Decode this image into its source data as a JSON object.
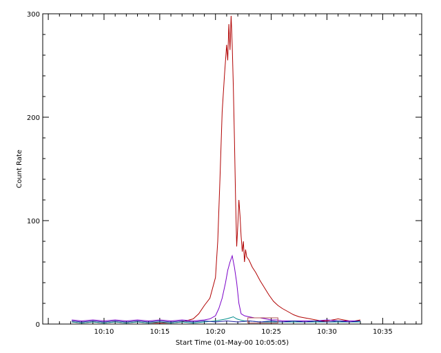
{
  "chart_data": {
    "type": "line",
    "xlabel": "Start Time (01-May-00 10:05:05)",
    "ylabel": "Count Rate",
    "xlim_min": [
      4.5,
      38.5
    ],
    "ylim": [
      0,
      300
    ],
    "x_ticks": [
      {
        "min": 10,
        "label": "10:10"
      },
      {
        "min": 15,
        "label": "10:15"
      },
      {
        "min": 20,
        "label": "10:20"
      },
      {
        "min": 25,
        "label": "10:25"
      },
      {
        "min": 30,
        "label": "10:30"
      },
      {
        "min": 35,
        "label": "10:35"
      }
    ],
    "y_ticks": [
      0,
      100,
      200,
      300
    ],
    "colors": {
      "red": "#b00000",
      "purple": "#7a00c8",
      "teal": "#008c8c",
      "blue": "#1a1aa0",
      "box": "#b05050"
    },
    "series": [
      {
        "color_key": "red",
        "x": [
          7.1,
          8,
          9,
          10,
          11,
          12,
          13,
          14,
          15,
          16,
          17,
          18,
          18.5,
          19,
          19.5,
          20.0,
          20.2,
          20.4,
          20.6,
          20.8,
          21.0,
          21.1,
          21.2,
          21.3,
          21.4,
          21.5,
          21.6,
          21.7,
          21.8,
          21.9,
          22.0,
          22.1,
          22.2,
          22.3,
          22.4,
          22.5,
          22.6,
          22.7,
          22.8,
          23.0,
          23.3,
          23.6,
          24.0,
          24.4,
          24.8,
          25.2,
          25.6,
          26.0,
          26.5,
          27.0,
          27.5,
          28.0,
          28.5,
          29.0,
          29.5,
          30.0,
          30.5,
          31.0,
          31.5,
          32.0,
          32.5,
          33.0
        ],
        "y": [
          2,
          1,
          2,
          1,
          2,
          1,
          2,
          1,
          1,
          1,
          2,
          5,
          10,
          18,
          25,
          45,
          80,
          140,
          205,
          240,
          270,
          255,
          290,
          265,
          298,
          270,
          230,
          180,
          120,
          75,
          95,
          120,
          105,
          85,
          70,
          80,
          60,
          72,
          65,
          62,
          55,
          50,
          42,
          35,
          28,
          22,
          18,
          15,
          12,
          9,
          7,
          6,
          5,
          4,
          3,
          3,
          4,
          5,
          4,
          3,
          3,
          4
        ]
      },
      {
        "color_key": "purple",
        "x": [
          7.1,
          8,
          9,
          10,
          11,
          12,
          13,
          14,
          15,
          16,
          17,
          18,
          19,
          19.5,
          20.0,
          20.3,
          20.6,
          20.9,
          21.1,
          21.3,
          21.5,
          21.7,
          21.9,
          22.1,
          22.3,
          22.6,
          23.0,
          23.5,
          24.0,
          24.5,
          25.0,
          25.5,
          26,
          27,
          28,
          29,
          30,
          31,
          32,
          33
        ],
        "y": [
          4,
          3,
          4,
          3,
          4,
          3,
          4,
          3,
          4,
          3,
          4,
          3,
          4,
          5,
          8,
          15,
          25,
          40,
          52,
          60,
          66,
          55,
          40,
          20,
          10,
          8,
          7,
          6,
          6,
          5,
          4,
          4,
          3,
          3,
          3,
          3,
          4,
          3,
          3,
          3
        ]
      },
      {
        "color_key": "teal",
        "x": [
          7.1,
          8,
          9,
          10,
          11,
          12,
          13,
          14,
          15,
          16,
          17,
          18,
          19,
          20.0,
          20.5,
          21.0,
          21.3,
          21.6,
          21.9,
          22.2,
          22.6,
          23.0,
          24,
          25,
          26,
          27,
          28,
          29,
          30,
          31,
          32,
          33
        ],
        "y": [
          2,
          1,
          2,
          1,
          2,
          1,
          2,
          1,
          2,
          1,
          2,
          1,
          2,
          3,
          4,
          5,
          6,
          7,
          5,
          4,
          3,
          3,
          2,
          2,
          2,
          2,
          2,
          2,
          2,
          2,
          2,
          2
        ]
      },
      {
        "color_key": "blue",
        "x": [
          7.1,
          8,
          9,
          10,
          11,
          12,
          13,
          14,
          15,
          16,
          17,
          18,
          19,
          20,
          21,
          22,
          23,
          24,
          25,
          26,
          27,
          28,
          29,
          30,
          31,
          32,
          33
        ],
        "y": [
          3,
          2,
          3,
          2,
          3,
          2,
          3,
          2,
          3,
          2,
          3,
          2,
          3,
          2,
          3,
          2,
          3,
          2,
          3,
          2,
          3,
          2,
          3,
          2,
          3,
          2,
          3
        ]
      }
    ],
    "box": {
      "x0": 22.9,
      "x1": 25.6,
      "y0": 1,
      "y1": 6
    }
  }
}
